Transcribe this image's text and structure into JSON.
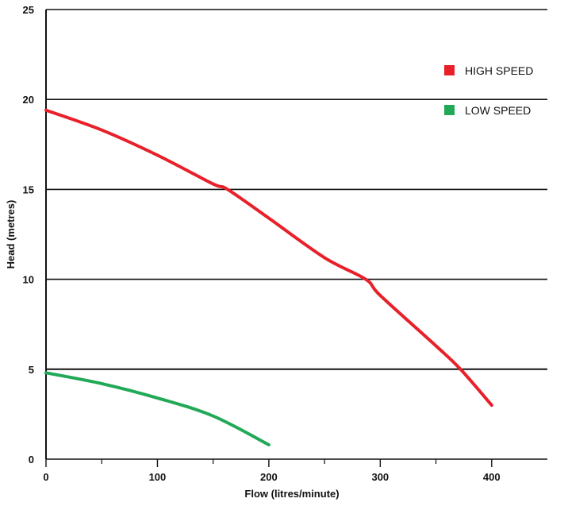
{
  "chart_data": {
    "type": "line",
    "title": "",
    "xlabel": "Flow (litres/minute)",
    "ylabel": "Head (metres)",
    "xlim": [
      0,
      450
    ],
    "ylim": [
      0,
      25
    ],
    "x_ticks": [
      0,
      100,
      200,
      300,
      400
    ],
    "x_tick_labels": [
      "0",
      "100",
      "200",
      "300",
      "400"
    ],
    "x_minor_ticks": [
      50,
      150,
      250,
      350
    ],
    "y_ticks": [
      0,
      5,
      10,
      15,
      20,
      25
    ],
    "y_tick_labels": [
      "0",
      "5",
      "10",
      "15",
      "20",
      "25"
    ],
    "grid": "horizontal",
    "legend": "right",
    "series": [
      {
        "name": "HIGH SPEED",
        "color": "#e8202a",
        "x": [
          0,
          50,
          100,
          150,
          163,
          200,
          250,
          287,
          300,
          350,
          372,
          400
        ],
        "y": [
          19.4,
          18.3,
          16.9,
          15.3,
          15.0,
          13.4,
          11.2,
          10.0,
          9.1,
          6.3,
          5.0,
          3.0
        ]
      },
      {
        "name": "LOW SPEED",
        "color": "#21a957",
        "x": [
          0,
          50,
          100,
          150,
          200
        ],
        "y": [
          4.8,
          4.2,
          3.4,
          2.4,
          0.8
        ]
      }
    ]
  }
}
